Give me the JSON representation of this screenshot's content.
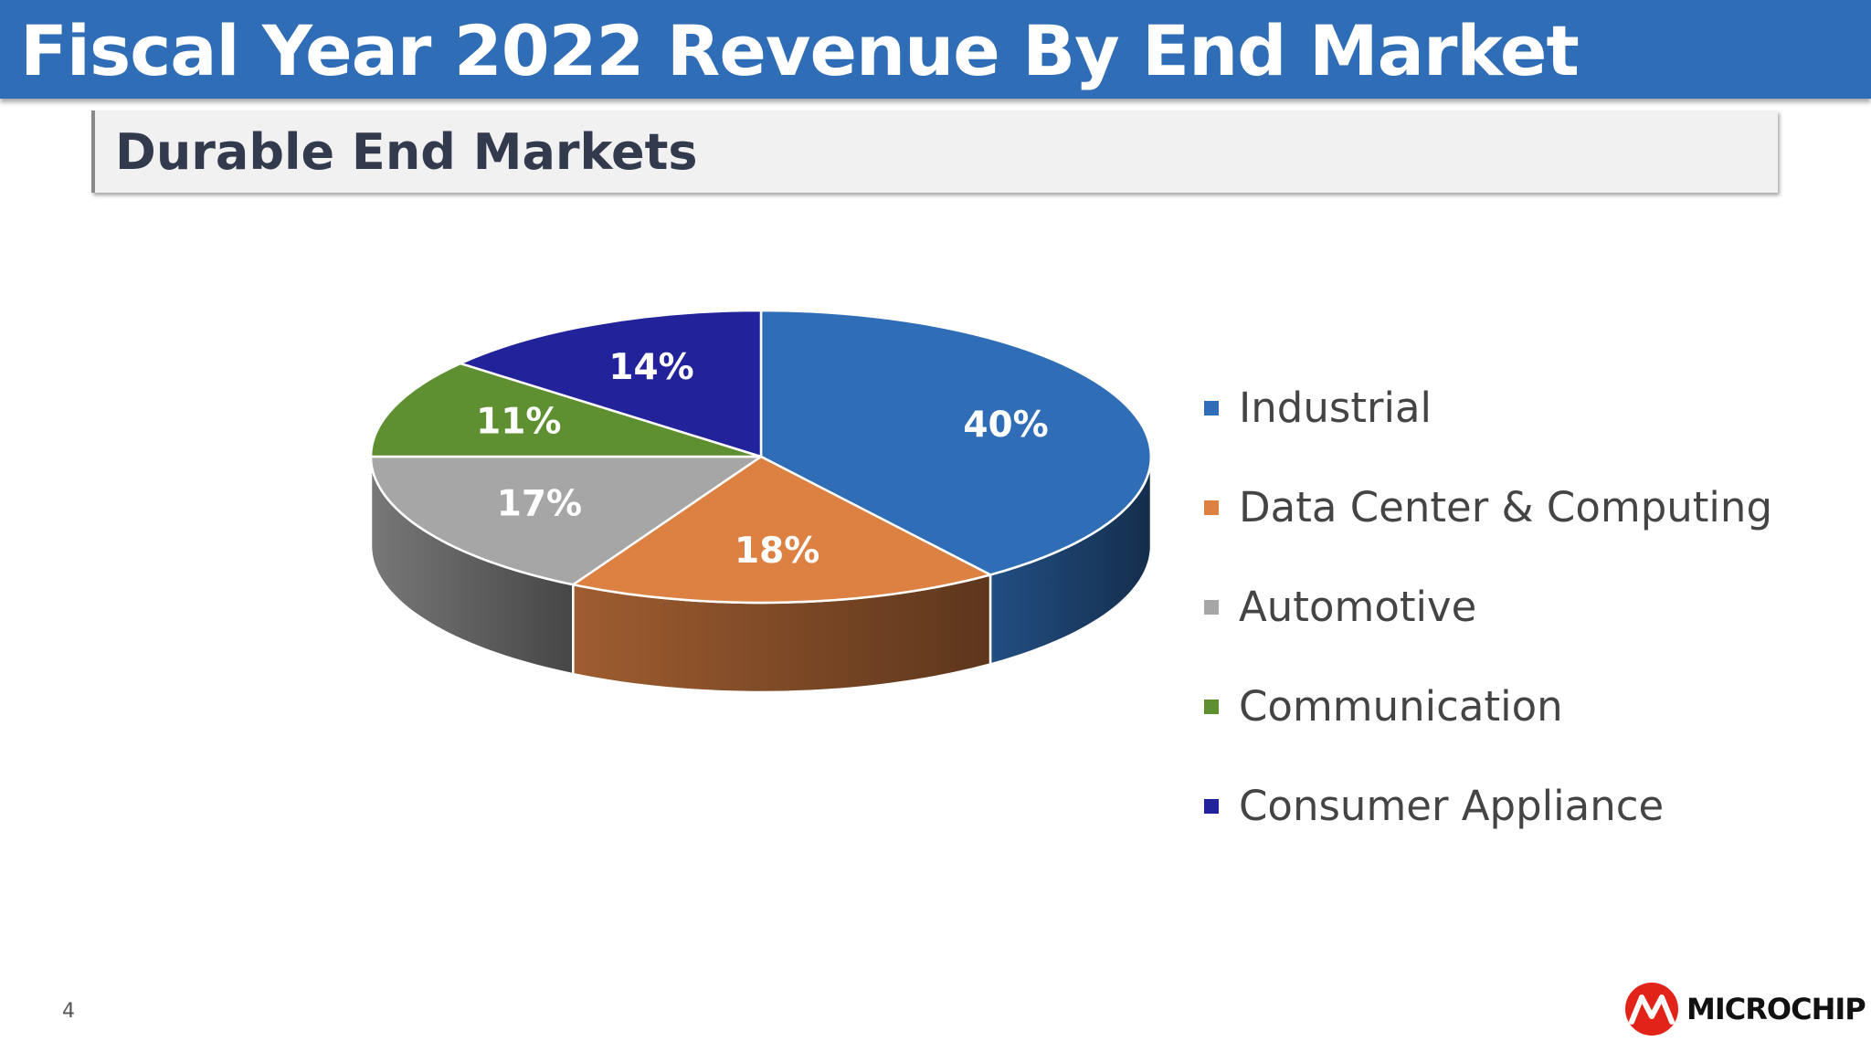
{
  "header": {
    "title": "Fiscal Year 2022 Revenue By End Market",
    "subtitle": "Durable End Markets"
  },
  "chart_data": {
    "type": "pie",
    "style": "3d",
    "categories": [
      "Industrial",
      "Data Center & Computing",
      "Automotive",
      "Communication",
      "Consumer Appliance"
    ],
    "values": [
      40,
      18,
      17,
      11,
      14
    ],
    "value_labels": [
      "40%",
      "18%",
      "17%",
      "11%",
      "14%"
    ],
    "colors": [
      "#2f6db6",
      "#dd8142",
      "#a6a6a6",
      "#5e8f30",
      "#22229a"
    ],
    "legend_position": "right"
  },
  "footer": {
    "page_number": "4",
    "logo_text": "MICROCHIP"
  }
}
